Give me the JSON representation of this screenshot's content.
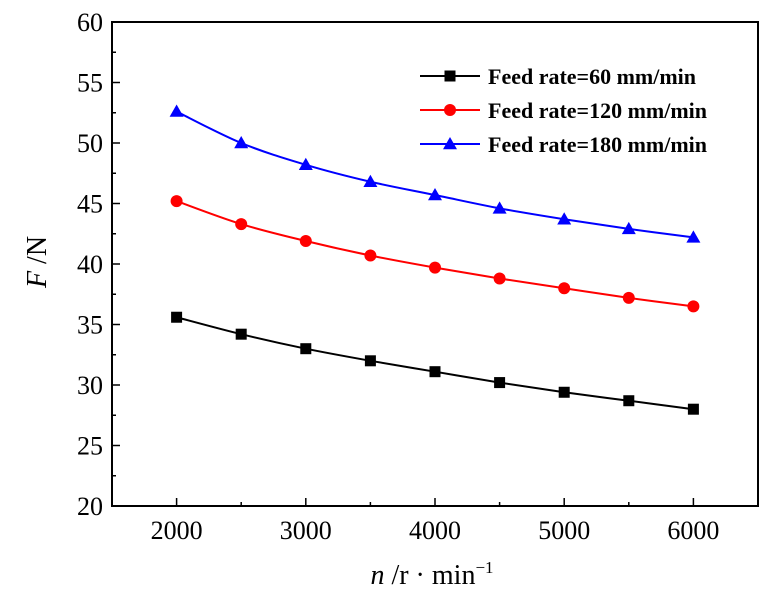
{
  "chart_data": {
    "type": "line",
    "title": "",
    "xlabel": {
      "var": "n",
      "unit": " /r · min",
      "sup": "−1"
    },
    "ylabel": {
      "var": "F",
      "unit": " /N"
    },
    "x": [
      2000,
      2500,
      3000,
      3500,
      4000,
      4500,
      5000,
      5500,
      6000
    ],
    "xlim": [
      1500,
      6500
    ],
    "ylim": [
      20,
      60
    ],
    "xticks": [
      2000,
      3000,
      4000,
      5000,
      6000
    ],
    "yticks": [
      20,
      25,
      30,
      35,
      40,
      45,
      50,
      55,
      60
    ],
    "grid": false,
    "legend_position": "top-right",
    "series": [
      {
        "name": "Feed rate=60 mm/min",
        "color": "#000000",
        "marker": "square",
        "values": [
          35.6,
          34.2,
          33.0,
          32.0,
          31.1,
          30.2,
          29.4,
          28.7,
          28.0
        ]
      },
      {
        "name": "Feed rate=120 mm/min",
        "color": "#ff0000",
        "marker": "circle",
        "values": [
          45.2,
          43.3,
          41.9,
          40.7,
          39.7,
          38.8,
          38.0,
          37.2,
          36.5
        ]
      },
      {
        "name": "Feed rate=180 mm/min",
        "color": "#0000ff",
        "marker": "triangle",
        "values": [
          52.6,
          50.0,
          48.2,
          46.8,
          45.7,
          44.6,
          43.7,
          42.9,
          42.2
        ]
      }
    ]
  }
}
